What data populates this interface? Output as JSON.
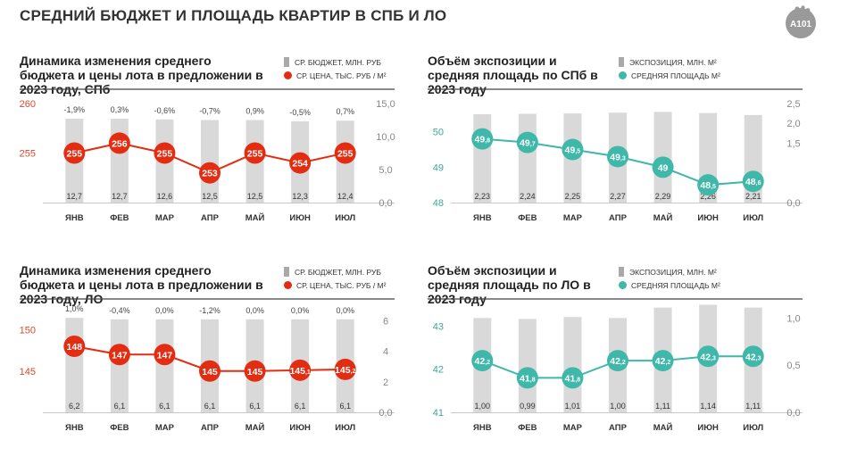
{
  "page": {
    "title": "СРЕДНИЙ БЮДЖЕТ И ПЛОЩАДЬ КВАРТИР В СПБ И ЛО",
    "logo_text": "А101"
  },
  "colors": {
    "bar": "#d9d9d9",
    "legend_bar": "#a9a9a9",
    "price_line": "#e22d12",
    "area_line": "#3fb8aa",
    "axis_left_red": "#d64a2a",
    "axis_left_teal": "#3fa89b",
    "axis_right": "#888888"
  },
  "chart_data": [
    {
      "id": "spb-budget",
      "type": "bar+line",
      "title": "Динамика изменения среднего бюджета и цены лота в предложении в 2023 году, СПб",
      "legend": {
        "bar": "СР. БЮДЖЕТ, МЛН. РУБ",
        "line": "СР. ЦЕНА, ТЫС. РУБ / М²"
      },
      "line_color_key": "price_line",
      "left_axis_color_key": "axis_left_red",
      "categories": [
        "ЯНВ",
        "ФЕВ",
        "МАР",
        "АПР",
        "МАЙ",
        "ИЮН",
        "ИЮЛ"
      ],
      "bar_values": [
        12.7,
        12.7,
        12.6,
        12.5,
        12.5,
        12.3,
        12.4
      ],
      "bar_labels": [
        "12,7",
        "12,7",
        "12,6",
        "12,5",
        "12,5",
        "12,3",
        "12,4"
      ],
      "top_labels": [
        "-1,9%",
        "0,3%",
        "-0,6%",
        "-0,7%",
        "0,9%",
        "-0,5%",
        "0,7%"
      ],
      "line_values": [
        255,
        256,
        255,
        253,
        255,
        254,
        255
      ],
      "line_labels": [
        [
          "255",
          ""
        ],
        [
          "256",
          ""
        ],
        [
          "255",
          ""
        ],
        [
          "253",
          ""
        ],
        [
          "255",
          ""
        ],
        [
          "254",
          ""
        ],
        [
          "255",
          ""
        ]
      ],
      "right_axis": {
        "min": 0,
        "max": 15,
        "ticks": [
          0,
          5,
          10,
          15
        ],
        "tick_labels": [
          "0,0",
          "5,0",
          "10,0",
          "15,0"
        ]
      },
      "left_axis": {
        "min": 250,
        "max": 260,
        "ticks": [
          255,
          260
        ],
        "tick_labels": [
          "255",
          "260"
        ]
      }
    },
    {
      "id": "spb-area",
      "type": "bar+line",
      "title": "Объём экспозиции и средняя площадь по СПб в 2023 году",
      "legend": {
        "bar": "ЭКСПОЗИЦИЯ, МЛН. М²",
        "line": "СРЕДНЯЯ ПЛОЩАДЬ  М²"
      },
      "line_color_key": "area_line",
      "left_axis_color_key": "axis_left_teal",
      "categories": [
        "ЯНВ",
        "ФЕВ",
        "МАР",
        "АПР",
        "МАЙ",
        "ИЮН",
        "ИЮЛ"
      ],
      "bar_values": [
        2.23,
        2.24,
        2.25,
        2.27,
        2.29,
        2.26,
        2.21
      ],
      "bar_labels": [
        "2,23",
        "2,24",
        "2,25",
        "2,27",
        "2,29",
        "2,26",
        "2,21"
      ],
      "top_labels": [],
      "line_values": [
        49.8,
        49.7,
        49.5,
        49.3,
        49.0,
        48.5,
        48.6
      ],
      "line_labels": [
        [
          "49",
          ",8"
        ],
        [
          "49",
          ",7"
        ],
        [
          "49",
          ",5"
        ],
        [
          "49",
          ",3"
        ],
        [
          "49",
          ""
        ],
        [
          "48",
          ",5"
        ],
        [
          "48",
          ",6"
        ]
      ],
      "right_axis": {
        "min": 0,
        "max": 2.5,
        "ticks": [
          0,
          1.5,
          2,
          2.5
        ],
        "tick_labels": [
          "0,0",
          "1,5",
          "2,0",
          "2,5"
        ]
      },
      "left_axis": {
        "min": 48,
        "max": 50.8,
        "ticks": [
          48,
          49,
          50
        ],
        "tick_labels": [
          "48",
          "49",
          "50"
        ]
      }
    },
    {
      "id": "lo-budget",
      "type": "bar+line",
      "title": "Динамика изменения среднего бюджета и цены лота в предложении в 2023 году, ЛО",
      "legend": {
        "bar": "СР. БЮДЖЕТ, МЛН. РУБ",
        "line": "СР. ЦЕНА, ТЫС. РУБ / М²"
      },
      "line_color_key": "price_line",
      "left_axis_color_key": "axis_left_red",
      "categories": [
        "ЯНВ",
        "ФЕВ",
        "МАР",
        "АПР",
        "МАЙ",
        "ИЮН",
        "ИЮЛ"
      ],
      "bar_values": [
        6.2,
        6.1,
        6.1,
        6.1,
        6.1,
        6.1,
        6.1
      ],
      "bar_labels": [
        "6,2",
        "6,1",
        "6,1",
        "6,1",
        "6,1",
        "6,1",
        "6,1"
      ],
      "top_labels": [
        "1,0%",
        "-0,4%",
        "0,0%",
        "-1,2%",
        "0,0%",
        "0,0%",
        "0,0%"
      ],
      "line_values": [
        148,
        147,
        147,
        145,
        145,
        145.1,
        145.2
      ],
      "line_labels": [
        [
          "148",
          ""
        ],
        [
          "147",
          ""
        ],
        [
          "147",
          ""
        ],
        [
          "145",
          ""
        ],
        [
          "145",
          ""
        ],
        [
          "145",
          ",1"
        ],
        [
          "145",
          ",2"
        ]
      ],
      "right_axis": {
        "min": 0,
        "max": 6.5,
        "ticks": [
          0,
          2,
          4,
          6
        ],
        "tick_labels": [
          "0,0",
          "2",
          "4",
          "6"
        ]
      },
      "left_axis": {
        "min": 140,
        "max": 152,
        "ticks": [
          145,
          150
        ],
        "tick_labels": [
          "145",
          "150"
        ]
      }
    },
    {
      "id": "lo-area",
      "type": "bar+line",
      "title": "Объём экспозиции и средняя площадь по ЛО в 2023 году",
      "legend": {
        "bar": "ЭКСПОЗИЦИЯ, МЛН. М²",
        "line": "СРЕДНЯЯ ПЛОЩАДЬ  М²"
      },
      "line_color_key": "area_line",
      "left_axis_color_key": "axis_left_teal",
      "categories": [
        "ЯНВ",
        "ФЕВ",
        "МАР",
        "АПР",
        "МАЙ",
        "ИЮН",
        "ИЮЛ"
      ],
      "bar_values": [
        1.0,
        0.99,
        1.01,
        1.0,
        1.11,
        1.14,
        1.11
      ],
      "bar_labels": [
        "1,00",
        "0,99",
        "1,01",
        "1,00",
        "1,11",
        "1,14",
        "1,11"
      ],
      "top_labels": [],
      "line_values": [
        42.2,
        41.8,
        41.8,
        42.2,
        42.2,
        42.3,
        42.3
      ],
      "line_labels": [
        [
          "42",
          ",2"
        ],
        [
          "41",
          ",8"
        ],
        [
          "41",
          ",8"
        ],
        [
          "42",
          ",2"
        ],
        [
          "42",
          ",2"
        ],
        [
          "42",
          ",3"
        ],
        [
          "42",
          ",3"
        ]
      ],
      "right_axis": {
        "min": 0,
        "max": 1.05,
        "ticks": [
          0,
          0.5,
          1
        ],
        "tick_labels": [
          "0,0",
          "0,5",
          "1,0"
        ]
      },
      "left_axis": {
        "min": 41,
        "max": 43.3,
        "ticks": [
          41,
          42,
          43
        ],
        "tick_labels": [
          "41",
          "42",
          "43"
        ]
      }
    }
  ]
}
